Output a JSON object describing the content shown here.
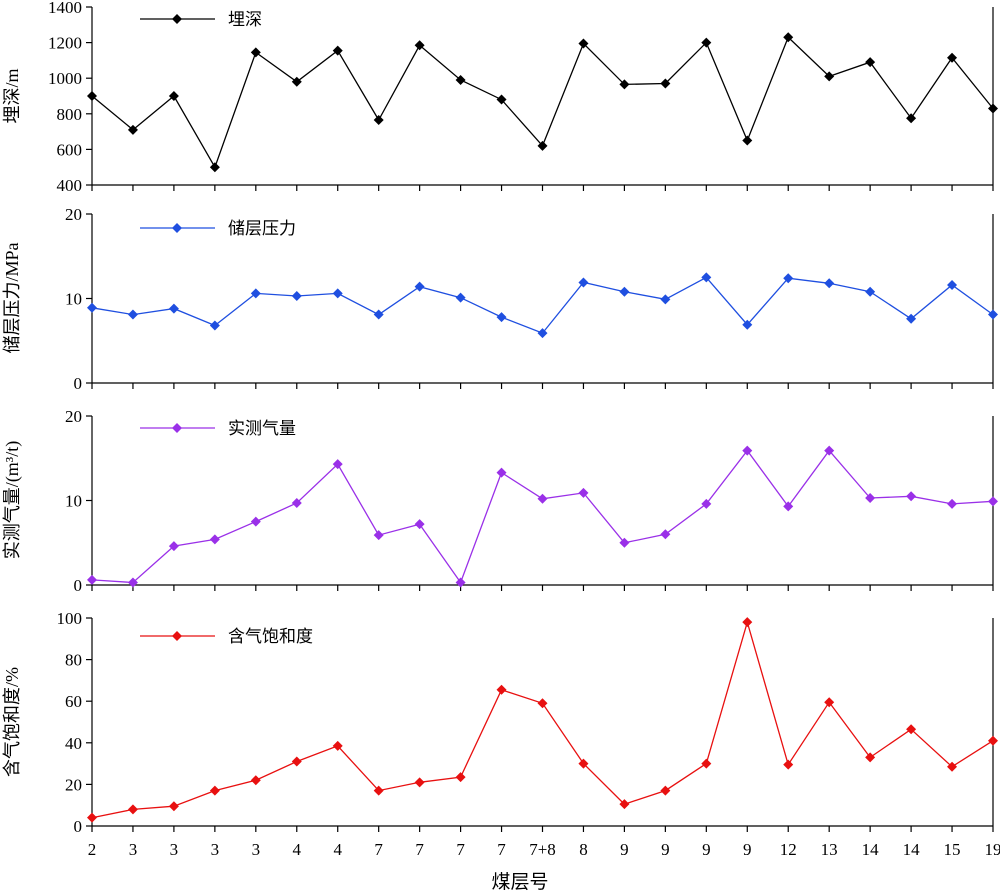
{
  "xlabel": "煤层号",
  "categories": [
    "2",
    "3",
    "3",
    "3",
    "3",
    "4",
    "4",
    "7",
    "7",
    "7",
    "7",
    "7+8",
    "8",
    "9",
    "9",
    "9",
    "9",
    "12",
    "13",
    "14",
    "14",
    "15",
    "19"
  ],
  "chart_data": [
    {
      "type": "line",
      "ylabel": "埋深/m",
      "ylim": [
        400,
        1400
      ],
      "yticks": [
        400,
        600,
        800,
        1000,
        1200,
        1400
      ],
      "series": [
        {
          "name": "埋深",
          "color": "#000000",
          "values": [
            900,
            710,
            900,
            500,
            1145,
            980,
            1155,
            765,
            1185,
            990,
            880,
            620,
            1195,
            965,
            970,
            1200,
            650,
            1230,
            1010,
            1090,
            775,
            1115,
            830
          ]
        }
      ],
      "legend": "top-left"
    },
    {
      "type": "line",
      "ylabel": "储层压力/MPa",
      "ylim": [
        0,
        20
      ],
      "yticks": [
        0,
        10,
        20
      ],
      "series": [
        {
          "name": "储层压力",
          "color": "#1f4fe0",
          "values": [
            8.9,
            8.1,
            8.8,
            6.8,
            10.6,
            10.3,
            10.6,
            8.1,
            11.4,
            10.1,
            7.8,
            5.9,
            11.9,
            10.8,
            9.9,
            12.5,
            6.9,
            12.4,
            11.8,
            10.8,
            7.6,
            11.6,
            8.1
          ]
        }
      ],
      "legend": "top-left"
    },
    {
      "type": "line",
      "ylabel": "实测气量/(m³/t)",
      "ylim": [
        0,
        20
      ],
      "yticks": [
        0,
        10,
        20
      ],
      "series": [
        {
          "name": "实测气量",
          "color": "#9a30e8",
          "values": [
            0.6,
            0.3,
            4.6,
            5.4,
            7.5,
            9.7,
            14.3,
            5.9,
            7.2,
            0.3,
            13.3,
            10.2,
            10.9,
            5.0,
            6.0,
            9.6,
            15.9,
            9.3,
            15.9,
            10.3,
            10.5,
            9.6,
            9.9
          ]
        }
      ],
      "legend": "top-left"
    },
    {
      "type": "line",
      "ylabel": "含气饱和度/%",
      "ylim": [
        0,
        100
      ],
      "yticks": [
        0,
        20,
        40,
        60,
        80,
        100
      ],
      "series": [
        {
          "name": "含气饱和度",
          "color": "#e81010",
          "values": [
            4,
            8,
            9.5,
            17,
            22,
            31,
            38.5,
            17,
            21,
            23.5,
            65.5,
            59,
            30,
            10.5,
            17,
            30,
            98,
            29.5,
            59.5,
            33,
            46.5,
            28.5,
            41
          ]
        }
      ],
      "legend": "top-left"
    }
  ]
}
